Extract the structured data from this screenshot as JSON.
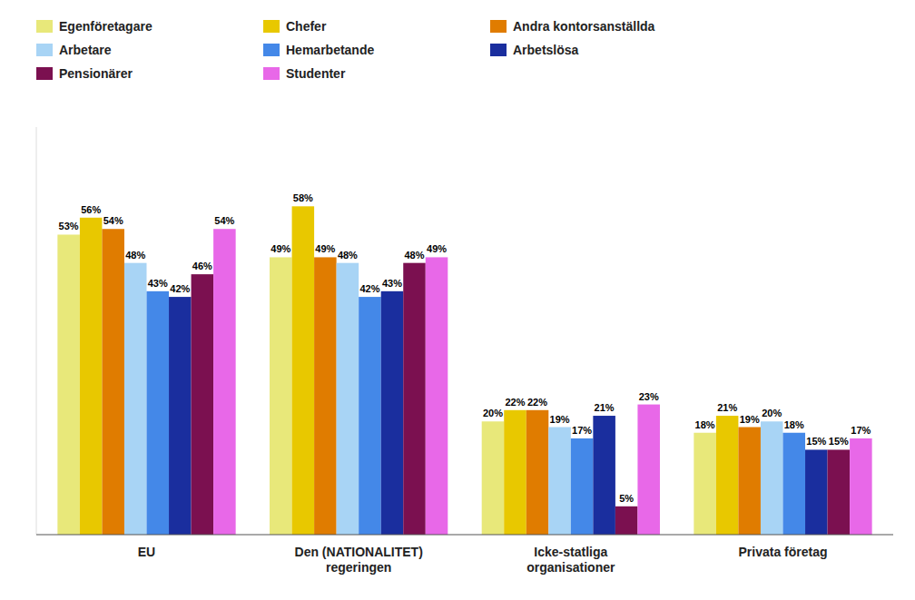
{
  "chart_data": {
    "type": "bar",
    "categories": [
      "EU",
      "Den (NATIONALITET)\nregeringen",
      "Icke-statliga\norganisationer",
      "Privata företag"
    ],
    "series": [
      {
        "name": "Egenföretagare",
        "color": "#e8e87a",
        "values": [
          53,
          49,
          20,
          18
        ],
        "value_labels": [
          "53%",
          "49%",
          "20%",
          "18%"
        ]
      },
      {
        "name": "Chefer",
        "color": "#e8c800",
        "values": [
          56,
          58,
          22,
          21
        ],
        "value_labels": [
          "56%",
          "58%",
          "22%",
          "21%"
        ]
      },
      {
        "name": "Andra kontorsanställda",
        "color": "#e07c00",
        "values": [
          54,
          49,
          22,
          19
        ],
        "value_labels": [
          "54%",
          "49%",
          "22%",
          "19%"
        ]
      },
      {
        "name": "Arbetare",
        "color": "#a8d4f5",
        "values": [
          48,
          48,
          19,
          20
        ],
        "value_labels": [
          "48%",
          "48%",
          "19%",
          "20%"
        ]
      },
      {
        "name": "Hemarbetande",
        "color": "#4488e8",
        "values": [
          43,
          42,
          17,
          18
        ],
        "value_labels": [
          "43%",
          "42%",
          "17%",
          "18%"
        ]
      },
      {
        "name": "Arbetslösa",
        "color": "#1a2e9e",
        "values": [
          42,
          43,
          21,
          15
        ],
        "value_labels": [
          "42%",
          "43%",
          "21%",
          "15%"
        ]
      },
      {
        "name": "Pensionärer",
        "color": "#7b1050",
        "values": [
          46,
          48,
          5,
          15
        ],
        "value_labels": [
          "46%",
          "48%",
          "5%",
          "15%"
        ]
      },
      {
        "name": "Studenter",
        "color": "#e868e8",
        "values": [
          54,
          49,
          23,
          17
        ],
        "value_labels": [
          "54%",
          "49%",
          "23%",
          "17%"
        ]
      }
    ],
    "ylim": [
      0,
      72
    ],
    "data_labels": true,
    "tick_labels": "x",
    "grid": false,
    "legend": "upper left"
  }
}
